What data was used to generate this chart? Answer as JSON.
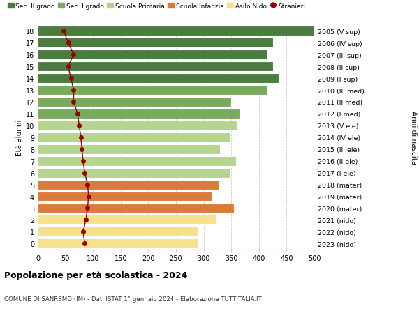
{
  "ages": [
    18,
    17,
    16,
    15,
    14,
    13,
    12,
    11,
    10,
    9,
    8,
    7,
    6,
    5,
    4,
    3,
    2,
    1,
    0
  ],
  "years": [
    "2005 (V sup)",
    "2006 (IV sup)",
    "2007 (III sup)",
    "2008 (II sup)",
    "2009 (I sup)",
    "2010 (III med)",
    "2011 (II med)",
    "2012 (I med)",
    "2013 (V ele)",
    "2014 (IV ele)",
    "2015 (III ele)",
    "2016 (II ele)",
    "2017 (I ele)",
    "2018 (mater)",
    "2019 (mater)",
    "2020 (mater)",
    "2021 (nido)",
    "2022 (nido)",
    "2023 (nido)"
  ],
  "values": [
    500,
    425,
    415,
    425,
    435,
    415,
    350,
    365,
    360,
    348,
    330,
    358,
    348,
    328,
    315,
    355,
    323,
    290,
    290
  ],
  "stranieri": [
    47,
    55,
    65,
    55,
    60,
    65,
    65,
    72,
    75,
    78,
    80,
    82,
    85,
    90,
    92,
    90,
    87,
    82,
    85
  ],
  "bar_colors": [
    "#4a7c3f",
    "#4a7c3f",
    "#4a7c3f",
    "#4a7c3f",
    "#4a7c3f",
    "#7aaa5e",
    "#7aaa5e",
    "#7aaa5e",
    "#b5d48f",
    "#b5d48f",
    "#b5d48f",
    "#b5d48f",
    "#b5d48f",
    "#d97b3a",
    "#d97b3a",
    "#d97b3a",
    "#f7e08a",
    "#f7e08a",
    "#f7e08a"
  ],
  "stranieri_color": "#990000",
  "title": "Popolazione per età scolastica - 2024",
  "subtitle": "COMUNE DI SANREMO (IM) - Dati ISTAT 1° gennaio 2024 - Elaborazione TUTTITALIA.IT",
  "ylabel_left": "Età alunni",
  "ylabel_right": "Anni di nascita",
  "xlim": [
    0,
    500
  ],
  "xticks": [
    0,
    50,
    100,
    150,
    200,
    250,
    300,
    350,
    400,
    450,
    500
  ],
  "grid_color": "#cccccc",
  "legend_labels": [
    "Sec. II grado",
    "Sec. I grado",
    "Scuola Primaria",
    "Scuola Infanzia",
    "Asilo Nido",
    "Stranieri"
  ],
  "legend_colors": [
    "#4a7c3f",
    "#7aaa5e",
    "#b5d48f",
    "#d97b3a",
    "#f7e08a",
    "#990000"
  ]
}
